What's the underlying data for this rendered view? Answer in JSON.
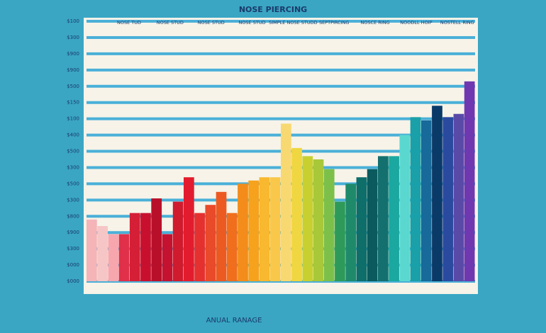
{
  "chart_data": {
    "type": "bar",
    "title": "NOSE PIERCING",
    "x_label": "ANUAL RANAGE",
    "annotations": [
      "NOSE TUD",
      "NOSE STUD",
      "NOSE STUD",
      "NOSE STUD",
      "SIMPLE NOSE STUDD",
      "SEPTPIRCING",
      "NOSCE RING",
      "NOODLL HOIP",
      "NOSTELL RING"
    ],
    "values": [
      3.8,
      3.4,
      2.9,
      2.9,
      4.2,
      4.2,
      5.1,
      2.9,
      4.9,
      6.4,
      4.2,
      4.7,
      5.5,
      4.2,
      6.0,
      6.2,
      6.4,
      6.4,
      9.7,
      8.2,
      7.7,
      7.5,
      6.9,
      4.9,
      6.0,
      6.4,
      6.9,
      7.7,
      7.7,
      9.0,
      10.1,
      9.9,
      10.8,
      10.1,
      10.3,
      12.3
    ],
    "colors": [
      "#f4b4b8",
      "#f6c6c6",
      "#f7a6ae",
      "#e0304a",
      "#d41f36",
      "#c8102e",
      "#b8102a",
      "#c41230",
      "#d01a2e",
      "#e21c2e",
      "#e53030",
      "#e84a2a",
      "#ec5a22",
      "#f06e1c",
      "#f38c1a",
      "#f6a21c",
      "#f8b830",
      "#f9c84a",
      "#f8d870",
      "#f0d640",
      "#c8d030",
      "#a8c83a",
      "#7cc04a",
      "#2e9a5a",
      "#1e8a6a",
      "#0e6e6a",
      "#0a5a5e",
      "#14706e",
      "#1aa8a0",
      "#5ad8d0",
      "#1aa0a8",
      "#176a9a",
      "#0a3a68",
      "#2a4aa0",
      "#5a4aa8",
      "#7038b0"
    ],
    "ylim": [
      0,
      16
    ],
    "yticks": [
      {
        "value": 0,
        "label": "$000"
      },
      {
        "value": 1,
        "label": "$000"
      },
      {
        "value": 2,
        "label": "$300"
      },
      {
        "value": 3,
        "label": "$900"
      },
      {
        "value": 4,
        "label": "$800"
      },
      {
        "value": 5,
        "label": "$300"
      },
      {
        "value": 6,
        "label": "$500"
      },
      {
        "value": 7,
        "label": "$300"
      },
      {
        "value": 8,
        "label": "$500"
      },
      {
        "value": 9,
        "label": "$400"
      },
      {
        "value": 10,
        "label": "$100"
      },
      {
        "value": 11,
        "label": "$150"
      },
      {
        "value": 12,
        "label": "$500"
      },
      {
        "value": 13,
        "label": "$900"
      },
      {
        "value": 14,
        "label": "$900"
      },
      {
        "value": 15,
        "label": "$300"
      },
      {
        "value": 16,
        "label": "$100"
      }
    ],
    "grid": true
  }
}
